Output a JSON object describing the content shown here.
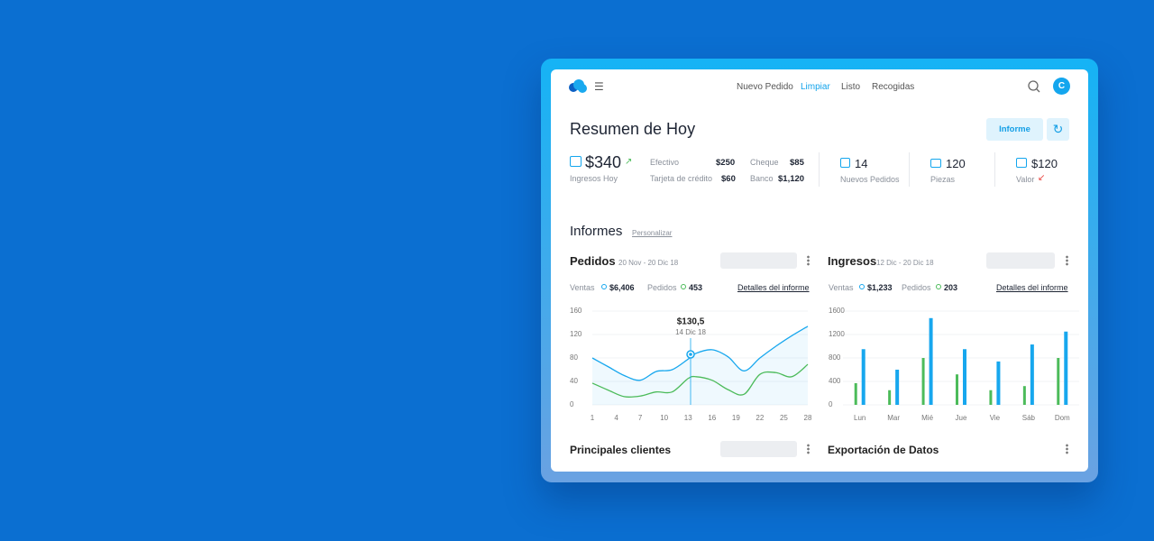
{
  "nav": {
    "logo_menu": "☰",
    "links": [
      "Nuevo Pedido",
      "Limpiar",
      "Listo",
      "Recogidas"
    ],
    "avatar": "C"
  },
  "header": {
    "title": "Resumen de Hoy",
    "button": "Informe"
  },
  "income": {
    "value": "$340",
    "label": "Ingresos Hoy",
    "breakdown": [
      {
        "label": "Efectivo",
        "value": "$250"
      },
      {
        "label": "Tarjeta de crédito",
        "value": "$60"
      },
      {
        "label": "Cheque",
        "value": "$85"
      },
      {
        "label": "Banco",
        "value": "$1,120"
      }
    ]
  },
  "stats": [
    {
      "value": 14,
      "label": "Nuevos Pedidos"
    },
    {
      "value": 120,
      "label": "Piezas"
    },
    {
      "value": "$120",
      "label": "Valor"
    }
  ],
  "section": {
    "title": "Informes",
    "link": "Personalizar"
  },
  "panels": [
    {
      "title": "Pedidos",
      "subtitle": "20 Nov - 20 Dic 18",
      "summary": [
        "$6,406",
        "453"
      ],
      "link": "Detalles del informe"
    },
    {
      "title": "Ingresos",
      "subtitle": "12 Dic - 20 Dic 18",
      "summary": [
        "$1,233",
        "203"
      ],
      "link": "Detalles del informe"
    }
  ],
  "bottom": [
    "Principales clientes",
    "Exportación de Datos"
  ],
  "chart_data": [
    {
      "type": "line",
      "x": [
        1,
        3,
        5,
        7,
        9,
        11,
        13,
        14,
        16,
        18,
        20,
        22,
        24,
        26,
        28
      ],
      "series": [
        {
          "name": "Ventas",
          "color": "#17a7ee",
          "values": [
            80,
            65,
            50,
            42,
            57,
            60,
            78,
            88,
            94,
            82,
            58,
            80,
            100,
            118,
            134
          ]
        },
        {
          "name": "Pedidos",
          "color": "#4cbb5a",
          "values": [
            37,
            25,
            14,
            15,
            22,
            22,
            45,
            48,
            42,
            26,
            18,
            52,
            55,
            48,
            69
          ]
        }
      ],
      "xlim": [
        1,
        28
      ],
      "xticks": [
        1,
        4,
        7,
        10,
        13,
        16,
        19,
        22,
        25,
        28
      ],
      "ylim": [
        0,
        160
      ],
      "yticks": [
        0,
        40,
        80,
        120,
        160
      ],
      "annotation": {
        "value": "$130,5",
        "date": "14 Dic 18"
      }
    },
    {
      "type": "bar",
      "categories": [
        "Lun",
        "Mar",
        "Mié",
        "Jue",
        "Vie",
        "Sáb",
        "Dom"
      ],
      "series": [
        {
          "name": "Pedidos",
          "color": "#4cbb5a",
          "values": [
            370,
            250,
            800,
            520,
            250,
            320,
            800
          ]
        },
        {
          "name": "Ventas",
          "color": "#17a7ee",
          "values": [
            950,
            600,
            1480,
            950,
            740,
            1030,
            1250
          ]
        }
      ],
      "ylim": [
        0,
        1600
      ],
      "yticks": [
        0,
        400,
        800,
        1200,
        1600
      ]
    }
  ]
}
